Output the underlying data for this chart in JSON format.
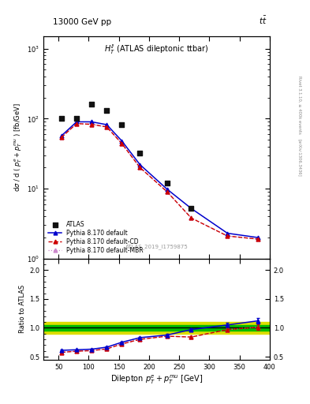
{
  "title_top": "13000 GeV pp",
  "title_right": "tt",
  "plot_label": "$H_T^{ll}$ (ATLAS dileptonic ttbar)",
  "atlas_label": "ATLAS_2019_I1759875",
  "atlas_x": [
    55,
    80,
    105,
    130,
    155,
    185,
    230,
    270
  ],
  "atlas_y": [
    100,
    102,
    160,
    130,
    82,
    32,
    12.0,
    5.2
  ],
  "py_x": [
    55,
    80,
    105,
    130,
    155,
    185,
    230,
    270,
    330,
    380
  ],
  "py_def_y": [
    57,
    90,
    90,
    82,
    48,
    22,
    9.8,
    5.2,
    2.3,
    2.0
  ],
  "py_cd_y": [
    54,
    85,
    83,
    76,
    44,
    20,
    9.0,
    3.8,
    2.1,
    1.9
  ],
  "py_mbr_y": [
    54,
    85,
    83,
    76,
    44,
    20,
    9.0,
    3.8,
    2.1,
    1.9
  ],
  "ratio_x": [
    55,
    80,
    105,
    130,
    155,
    185,
    230,
    270,
    330,
    380
  ],
  "ratio_def_y": [
    0.61,
    0.62,
    0.63,
    0.665,
    0.75,
    0.83,
    0.875,
    0.97,
    1.05,
    1.12
  ],
  "ratio_cd_y": [
    0.575,
    0.595,
    0.605,
    0.635,
    0.72,
    0.8,
    0.855,
    0.84,
    0.97,
    1.01
  ],
  "ratio_mbr_y": [
    0.575,
    0.595,
    0.605,
    0.635,
    0.72,
    0.8,
    0.855,
    0.84,
    0.97,
    1.01
  ],
  "ratio_def_err": [
    0.008,
    0.008,
    0.008,
    0.008,
    0.01,
    0.012,
    0.015,
    0.02,
    0.035,
    0.05
  ],
  "ratio_cd_err": [
    0.008,
    0.008,
    0.008,
    0.008,
    0.01,
    0.012,
    0.015,
    0.02,
    0.035,
    0.05
  ],
  "band_yellow_lo": 0.895,
  "band_yellow_hi": 1.105,
  "band_green_lo": 0.955,
  "band_green_hi": 1.045,
  "band_right_start": 300,
  "xlim": [
    25,
    400
  ],
  "ylim_main": [
    1.0,
    1500.0
  ],
  "ylim_ratio": [
    0.45,
    2.2
  ],
  "ratio_yticks": [
    0.5,
    1.0,
    1.5,
    2.0
  ],
  "color_default": "#0000cc",
  "color_cd": "#cc0000",
  "color_mbr": "#cc88cc",
  "color_atlas": "#111111",
  "color_band_yellow": "#dddd00",
  "color_band_green": "#00bb00"
}
